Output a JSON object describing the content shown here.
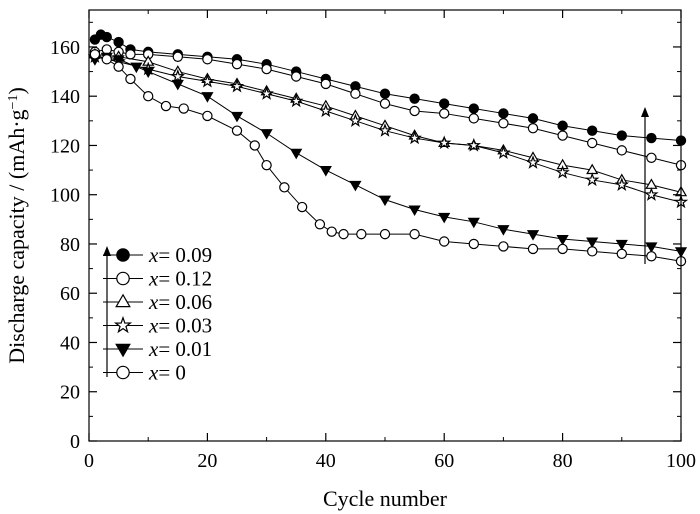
{
  "chart_data": {
    "type": "line",
    "xlabel": "Cycle number",
    "ylabel_main": "Discharge capacity / (mAh·g",
    "ylabel_sup": "−1",
    "ylabel_close": ")",
    "xlim": [
      0,
      100
    ],
    "ylim": [
      0,
      175
    ],
    "xticks": [
      0,
      20,
      40,
      60,
      80,
      100
    ],
    "yticks": [
      0,
      20,
      40,
      60,
      80,
      100,
      120,
      140,
      160
    ],
    "grid": false,
    "legend_position": "bottom-left",
    "legend_var": "x",
    "series": [
      {
        "name": "= 0.09",
        "marker": "circle",
        "fill": "filled",
        "x": [
          1,
          2,
          3,
          5,
          7,
          10,
          15,
          20,
          25,
          30,
          35,
          40,
          45,
          50,
          55,
          60,
          65,
          70,
          75,
          80,
          85,
          90,
          95,
          100
        ],
        "y": [
          163,
          165,
          164,
          162,
          159,
          158,
          157,
          156,
          155,
          153,
          150,
          147,
          144,
          141,
          139,
          137,
          135,
          133,
          131,
          128,
          126,
          124,
          123,
          122
        ]
      },
      {
        "name": "= 0.12",
        "marker": "circle",
        "fill": "open",
        "x": [
          1,
          3,
          5,
          7,
          10,
          15,
          20,
          25,
          30,
          35,
          40,
          45,
          50,
          55,
          60,
          65,
          70,
          75,
          80,
          85,
          90,
          95,
          100
        ],
        "y": [
          158,
          159,
          158,
          157,
          157,
          156,
          155,
          153,
          151,
          148,
          145,
          141,
          137,
          134,
          133,
          131,
          129,
          127,
          124,
          121,
          118,
          115,
          112
        ]
      },
      {
        "name": "= 0.06",
        "marker": "triangle",
        "fill": "open",
        "x": [
          1,
          5,
          10,
          15,
          20,
          25,
          30,
          35,
          40,
          45,
          50,
          55,
          60,
          65,
          70,
          75,
          80,
          85,
          90,
          95,
          100
        ],
        "y": [
          157,
          156,
          154,
          150,
          147,
          145,
          142,
          139,
          136,
          132,
          128,
          124,
          121,
          120,
          118,
          115,
          112,
          110,
          106,
          104,
          101
        ]
      },
      {
        "name": "= 0.03",
        "marker": "star",
        "fill": "open",
        "x": [
          1,
          5,
          10,
          15,
          20,
          25,
          30,
          35,
          40,
          45,
          50,
          55,
          60,
          65,
          70,
          75,
          80,
          85,
          90,
          95,
          100
        ],
        "y": [
          156,
          154,
          151,
          148,
          146,
          144,
          141,
          138,
          134,
          130,
          126,
          123,
          121,
          120,
          117,
          113,
          109,
          106,
          104,
          100,
          97
        ]
      },
      {
        "name": "= 0.01",
        "marker": "triangle-down",
        "fill": "filled",
        "x": [
          1,
          3,
          5,
          8,
          10,
          15,
          20,
          25,
          30,
          35,
          40,
          45,
          50,
          55,
          60,
          65,
          70,
          75,
          80,
          85,
          90,
          95,
          100
        ],
        "y": [
          155,
          156,
          155,
          152,
          150,
          145,
          140,
          132,
          125,
          117,
          110,
          104,
          98,
          94,
          91,
          89,
          86,
          84,
          82,
          81,
          80,
          79,
          77
        ]
      },
      {
        "name": "= 0",
        "marker": "circle",
        "fill": "open",
        "x": [
          1,
          3,
          5,
          7,
          10,
          13,
          16,
          20,
          25,
          28,
          30,
          33,
          36,
          39,
          41,
          43,
          46,
          50,
          55,
          60,
          65,
          70,
          75,
          80,
          85,
          90,
          95,
          100
        ],
        "y": [
          157,
          155,
          152,
          147,
          140,
          136,
          135,
          132,
          126,
          120,
          112,
          103,
          95,
          88,
          85,
          84,
          84,
          84,
          84,
          81,
          80,
          79,
          78,
          78,
          77,
          76,
          75,
          73
        ]
      }
    ]
  }
}
